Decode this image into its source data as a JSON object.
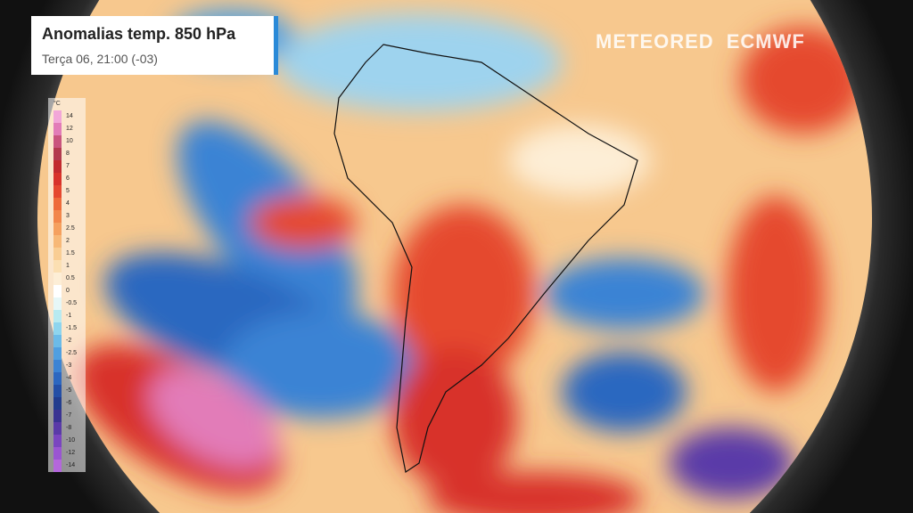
{
  "header": {
    "title": "Anomalias temp. 850 hPa",
    "subtitle": "Terça 06, 21:00 (-03)"
  },
  "branding": {
    "provider": "METEORED",
    "model": "ECMWF"
  },
  "legend": {
    "unit": "°C",
    "items": [
      {
        "label": "14",
        "color": "#f2a6d8"
      },
      {
        "label": "12",
        "color": "#e27cb8"
      },
      {
        "label": "10",
        "color": "#c9547e"
      },
      {
        "label": "8",
        "color": "#b23a4e"
      },
      {
        "label": "7",
        "color": "#c22a2e"
      },
      {
        "label": "6",
        "color": "#d8322a"
      },
      {
        "label": "5",
        "color": "#e5482f"
      },
      {
        "label": "4",
        "color": "#ee6a3a"
      },
      {
        "label": "3",
        "color": "#f2864a"
      },
      {
        "label": "2.5",
        "color": "#f5a05e"
      },
      {
        "label": "2",
        "color": "#f7b877"
      },
      {
        "label": "1.5",
        "color": "#f9cd93"
      },
      {
        "label": "1",
        "color": "#fbdfb2"
      },
      {
        "label": "0.5",
        "color": "#fdeed6"
      },
      {
        "label": "0",
        "color": "#ffffff"
      },
      {
        "label": "-0.5",
        "color": "#e6f7f7"
      },
      {
        "label": "-1",
        "color": "#b8eaf0"
      },
      {
        "label": "-1.5",
        "color": "#8ed5ee"
      },
      {
        "label": "-2",
        "color": "#6bbbe8"
      },
      {
        "label": "-2.5",
        "color": "#4f9fe0"
      },
      {
        "label": "-3",
        "color": "#3b83d4"
      },
      {
        "label": "-4",
        "color": "#2c67c0"
      },
      {
        "label": "-5",
        "color": "#244fa6"
      },
      {
        "label": "-6",
        "color": "#223d8e"
      },
      {
        "label": "-7",
        "color": "#3a3392"
      },
      {
        "label": "-8",
        "color": "#5a3aa8"
      },
      {
        "label": "-10",
        "color": "#7a45c0"
      },
      {
        "label": "-12",
        "color": "#9a55d2"
      },
      {
        "label": "-14",
        "color": "#b467dc"
      }
    ]
  }
}
